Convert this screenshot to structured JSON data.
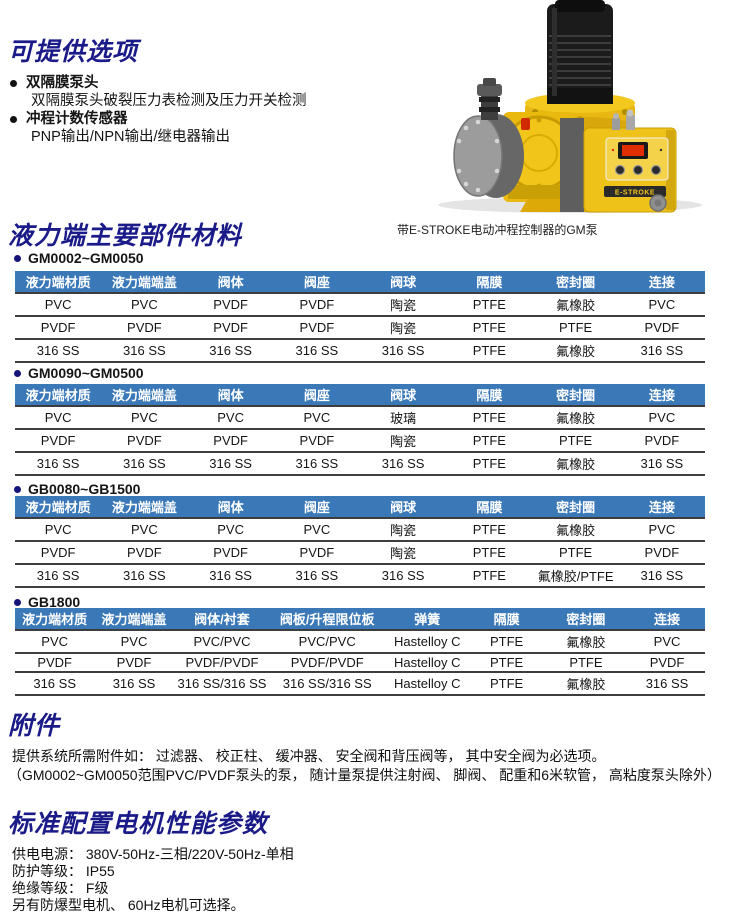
{
  "options_section": {
    "title": "可提供选项",
    "items": [
      {
        "label": "双隔膜泵头",
        "desc": "双隔膜泵头破裂压力表检测及压力开关检测"
      },
      {
        "label": "冲程计数传感器",
        "desc": "PNP输出/NPN输出/继电器输出"
      }
    ]
  },
  "pump_image": {
    "caption": "带E-STROKE电动冲程控制器的GM泵",
    "brand_label": "E-STROKE"
  },
  "materials_section": {
    "title": "液力端主要部件材料",
    "tables": [
      {
        "label": "GM0002~GM0050",
        "headers": [
          "液力端材质",
          "液力端端盖",
          "阀体",
          "阀座",
          "阀球",
          "隔膜",
          "密封圈",
          "连接"
        ],
        "rows": [
          [
            "PVC",
            "PVC",
            "PVDF",
            "PVDF",
            "陶瓷",
            "PTFE",
            "氟橡胶",
            "PVC"
          ],
          [
            "PVDF",
            "PVDF",
            "PVDF",
            "PVDF",
            "陶瓷",
            "PTFE",
            "PTFE",
            "PVDF"
          ],
          [
            "316 SS",
            "316 SS",
            "316 SS",
            "316 SS",
            "316 SS",
            "PTFE",
            "氟橡胶",
            "316 SS"
          ]
        ]
      },
      {
        "label": "GM0090~GM0500",
        "headers": [
          "液力端材质",
          "液力端端盖",
          "阀体",
          "阀座",
          "阀球",
          "隔膜",
          "密封圈",
          "连接"
        ],
        "rows": [
          [
            "PVC",
            "PVC",
            "PVC",
            "PVC",
            "玻璃",
            "PTFE",
            "氟橡胶",
            "PVC"
          ],
          [
            "PVDF",
            "PVDF",
            "PVDF",
            "PVDF",
            "陶瓷",
            "PTFE",
            "PTFE",
            "PVDF"
          ],
          [
            "316 SS",
            "316 SS",
            "316 SS",
            "316 SS",
            "316 SS",
            "PTFE",
            "氟橡胶",
            "316 SS"
          ]
        ]
      },
      {
        "label": "GB0080~GB1500",
        "headers": [
          "液力端材质",
          "液力端端盖",
          "阀体",
          "阀座",
          "阀球",
          "隔膜",
          "密封圈",
          "连接"
        ],
        "rows": [
          [
            "PVC",
            "PVC",
            "PVC",
            "PVC",
            "陶瓷",
            "PTFE",
            "氟橡胶",
            "PVC"
          ],
          [
            "PVDF",
            "PVDF",
            "PVDF",
            "PVDF",
            "陶瓷",
            "PTFE",
            "PTFE",
            "PVDF"
          ],
          [
            "316 SS",
            "316 SS",
            "316 SS",
            "316 SS",
            "316 SS",
            "PTFE",
            "氟橡胶/PTFE",
            "316 SS"
          ]
        ]
      },
      {
        "label": "GB1800",
        "headers": [
          "液力端材质",
          "液力端端盖",
          "阀体/衬套",
          "阀板/升程限位板",
          "弹簧",
          "隔膜",
          "密封圈",
          "连接"
        ],
        "rows": [
          [
            "PVC",
            "PVC",
            "PVC/PVC",
            "PVC/PVC",
            "Hastelloy C",
            "PTFE",
            "氟橡胶",
            "PVC"
          ],
          [
            "PVDF",
            "PVDF",
            "PVDF/PVDF",
            "PVDF/PVDF",
            "Hastelloy C",
            "PTFE",
            "PTFE",
            "PVDF"
          ],
          [
            "316 SS",
            "316 SS",
            "316 SS/316 SS",
            "316 SS/316 SS",
            "Hastelloy C",
            "PTFE",
            "氟橡胶",
            "316 SS"
          ]
        ]
      }
    ]
  },
  "accessories_section": {
    "title": "附件",
    "lines": [
      "提供系统所需附件如： 过滤器、 校正柱、 缓冲器、 安全阀和背压阀等， 其中安全阀为必选项。",
      "（GM0002~GM0050范围PVC/PVDF泵头的泵， 随计量泵提供注射阀、 脚阀、 配重和6米软管， 高粘度泵头除外）"
    ]
  },
  "motor_section": {
    "title": "标准配置电机性能参数",
    "lines": [
      "供电电源：  380V-50Hz-三相/220V-50Hz-单相",
      "防护等级：  IP55",
      "绝缘等级：  F级",
      "另有防爆型电机、 60Hz电机可选择。"
    ]
  },
  "colors": {
    "title_navy": "#1a1a88",
    "table_header_blue": "#3a78b8",
    "row_divider": "#3d3d3d",
    "pump_yellow": "#eebd16"
  }
}
